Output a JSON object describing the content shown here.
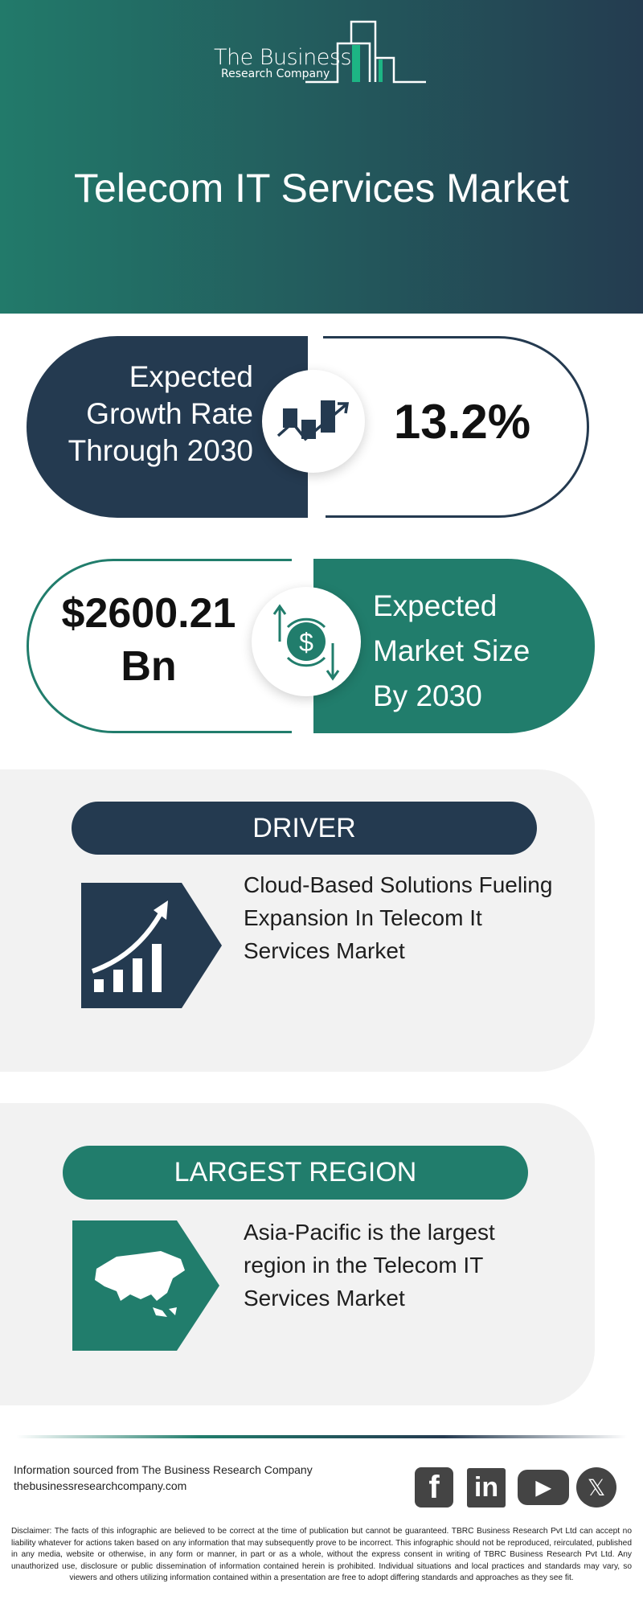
{
  "header": {
    "logo_line1": "The Business",
    "logo_line2": "Research Company",
    "title": "Telecom IT Services Market"
  },
  "growth": {
    "label_lines": [
      "Expected",
      "Growth Rate",
      "Through 2030"
    ],
    "value": "13.2%",
    "icon": "growth-chart-icon"
  },
  "market_size": {
    "value_lines": [
      "$2600.21",
      "Bn"
    ],
    "label_lines": [
      "Expected",
      "Market Size",
      "By 2030"
    ],
    "icon": "dollar-exchange-icon"
  },
  "driver": {
    "heading": "DRIVER",
    "text_lines": [
      "Cloud-Based Solutions Fueling",
      "Expansion In Telecom It",
      "Services Market"
    ],
    "icon": "rising-bars-icon"
  },
  "region": {
    "heading": "LARGEST REGION",
    "text_lines": [
      "Asia-Pacific is the largest",
      "region in the Telecom IT",
      "Services Market"
    ],
    "icon": "asia-map-icon"
  },
  "footer": {
    "source": "Information sourced from The Business Research Company",
    "website": "thebusinessresearchcompany.com",
    "social": [
      {
        "name": "facebook",
        "glyph": "f"
      },
      {
        "name": "linkedin",
        "glyph": "in"
      },
      {
        "name": "youtube",
        "glyph": "▶"
      },
      {
        "name": "x",
        "glyph": "𝕏"
      }
    ],
    "disclaimer": "Disclaimer: The facts of this infographic are believed to be correct at the time of publication but cannot be guaranteed. TBRC Business Research Pvt Ltd can accept no liability whatever for actions taken based on any information that may subsequently prove to be incorrect. This infographic should not be reproduced, reirculated, published in any media, website or otherwise, in any form or manner, in part or as a whole, without the express consent in writing of TBRC Business Research Pvt Ltd. Any unauthorized use, disclosure or public dissemination of information contained herein is prohibited. Individual situations and local practices and standards may vary, so viewers and others utilizing information contained within a presentation are free to adopt differing standards and approaches as they see fit."
  },
  "colors": {
    "navy": "#243a50",
    "teal": "#217d6c",
    "accent_green": "#1db584",
    "panel_bg": "#f2f2f2"
  }
}
